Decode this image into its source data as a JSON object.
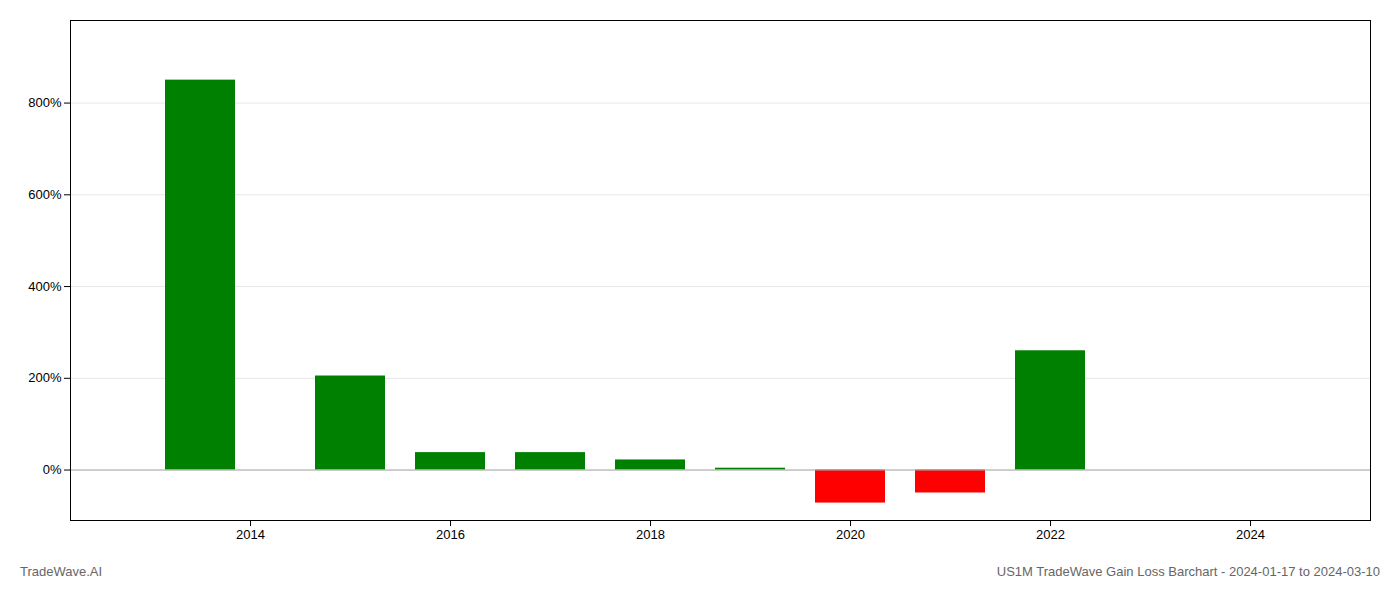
{
  "chart_data": {
    "type": "bar",
    "x": [
      2013.5,
      2015.0,
      2016.0,
      2017.0,
      2018.0,
      2019.0,
      2020.0,
      2021.0,
      2022.0
    ],
    "values": [
      8.5,
      2.05,
      0.38,
      0.38,
      0.22,
      0.04,
      -0.72,
      -0.5,
      2.6
    ],
    "colors": [
      "#008000",
      "#008000",
      "#008000",
      "#008000",
      "#008000",
      "#008000",
      "#ff0000",
      "#ff0000",
      "#008000"
    ],
    "xlim": [
      2012.2,
      2025.2
    ],
    "ylim": [
      -1.1,
      9.8
    ],
    "xticks": [
      2014,
      2016,
      2018,
      2020,
      2022,
      2024
    ],
    "yticks": [
      {
        "value": 0.0,
        "label": "0%"
      },
      {
        "value": 2.0,
        "label": "200%"
      },
      {
        "value": 4.0,
        "label": "400%"
      },
      {
        "value": 6.0,
        "label": "600%"
      },
      {
        "value": 8.0,
        "label": "800%"
      }
    ],
    "grid": true,
    "annotations": [
      "TradeWave.AI",
      "US1M TradeWave Gain Loss Barchart - 2024-01-17 to 2024-03-10"
    ]
  }
}
